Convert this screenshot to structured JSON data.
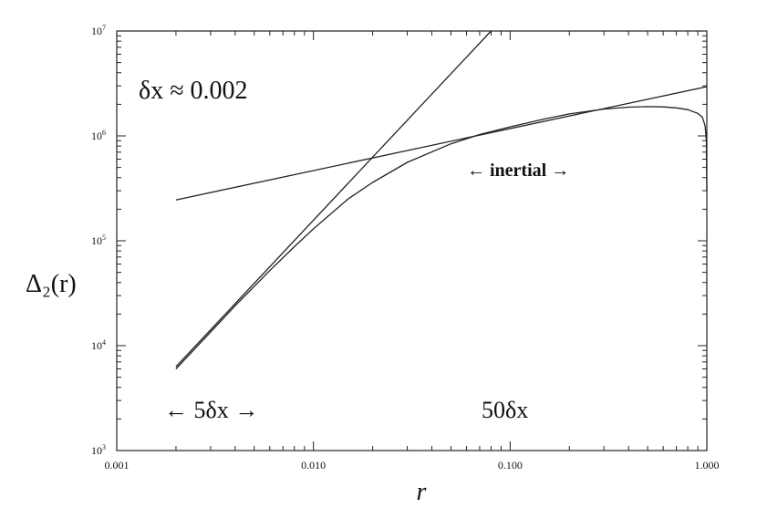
{
  "chart_data": {
    "type": "line",
    "xscale": "log",
    "yscale": "log",
    "xlim": [
      0.001,
      1.0
    ],
    "ylim": [
      1000,
      10000000
    ],
    "xlabel": "r",
    "ylabel": "Δ₂(r)",
    "x_tick_labels": [
      "0.001",
      "0.010",
      "0.100",
      "1.000"
    ],
    "x_ticks": [
      0.001,
      0.01,
      0.1,
      1.0
    ],
    "y_ticks": [
      {
        "value": 1000,
        "base": "10",
        "exp": "3"
      },
      {
        "value": 10000,
        "base": "10",
        "exp": "4"
      },
      {
        "value": 100000,
        "base": "10",
        "exp": "5"
      },
      {
        "value": 1000000,
        "base": "10",
        "exp": "6"
      },
      {
        "value": 10000000,
        "base": "10",
        "exp": "7"
      }
    ],
    "series": [
      {
        "x": [
          0.002,
          0.003,
          0.004,
          0.006,
          0.008,
          0.01,
          0.015,
          0.02,
          0.03,
          0.05,
          0.07,
          0.1,
          0.15,
          0.2,
          0.3,
          0.4,
          0.5,
          0.6,
          0.7,
          0.8,
          0.9,
          0.95,
          0.98,
          0.995,
          1.0
        ],
        "y": [
          6000,
          13500,
          24000,
          52000,
          88000,
          130000,
          250000,
          360000,
          560000,
          840000,
          1030000,
          1220000,
          1450000,
          1620000,
          1800000,
          1880000,
          1900000,
          1890000,
          1850000,
          1780000,
          1640000,
          1500000,
          1250000,
          900000,
          300000
        ]
      },
      {
        "x": [
          0.002,
          0.08
        ],
        "y": [
          6300,
          10000000
        ]
      },
      {
        "x": [
          0.002,
          1.0
        ],
        "y": [
          245000,
          2950000
        ]
      }
    ],
    "annotations": [
      {
        "text": "δx ≈ 0.002"
      },
      {
        "text": "← inertial →"
      },
      {
        "text": "← 5δx →"
      },
      {
        "text": "50δx"
      }
    ],
    "grid": false,
    "legend": "none"
  }
}
